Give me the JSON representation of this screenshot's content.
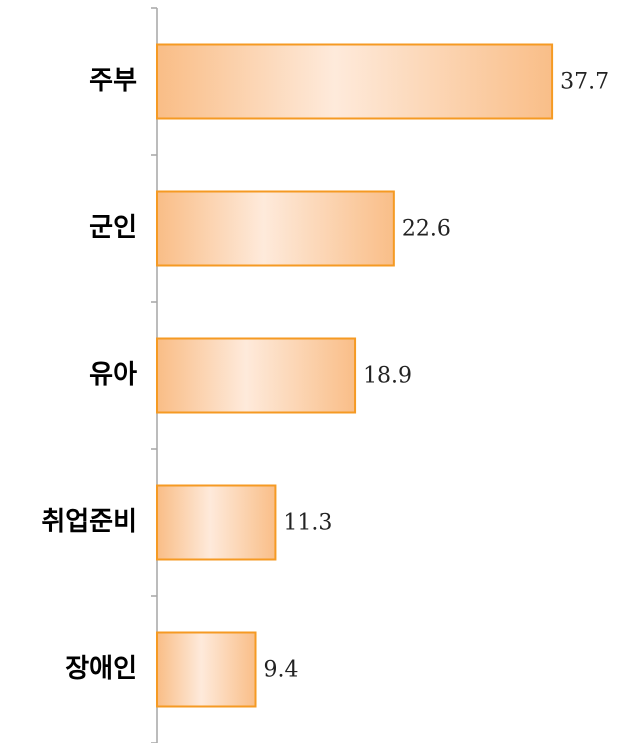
{
  "chart_data": {
    "type": "hbar",
    "categories": [
      "주부",
      "군인",
      "유아",
      "취업준비",
      "장애인"
    ],
    "values": [
      37.7,
      22.6,
      18.9,
      11.3,
      9.4
    ],
    "color": "#f59a23"
  }
}
